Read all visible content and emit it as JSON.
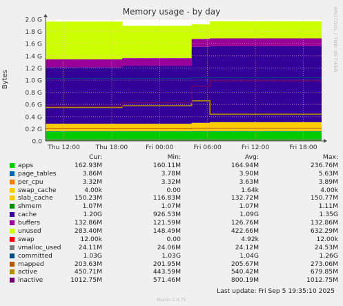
{
  "chart_data": {
    "type": "area",
    "title": "Memory usage - by day",
    "ylabel": "Bytes",
    "ylim": [
      0,
      2.0
    ],
    "y_unit": "G",
    "yticks": [
      "0.0",
      "0.2 G",
      "0.4 G",
      "0.6 G",
      "0.8 G",
      "1.0 G",
      "1.2 G",
      "1.4 G",
      "1.6 G",
      "1.8 G",
      "2.0 G"
    ],
    "xticks": [
      "Thu 12:00",
      "Thu 18:00",
      "Fri 00:00",
      "Fri 06:00",
      "Fri 12:00",
      "Fri 18:00"
    ],
    "x_hours": [
      12,
      18,
      24,
      30,
      36,
      42
    ],
    "x_range_hours": [
      9.7,
      44.3
    ],
    "grid": true,
    "phases_hours": [
      9.7,
      19.3,
      28.0,
      30.3,
      44.3
    ],
    "stack_phases_G": {
      "apps": [
        0.155,
        0.155,
        0.155,
        0.155
      ],
      "page_tables": [
        0.004,
        0.004,
        0.004,
        0.004
      ],
      "per_cpu": [
        0.003,
        0.003,
        0.003,
        0.003
      ],
      "swap_cache": [
        0.0,
        0.0,
        0.0,
        0.0
      ],
      "slab_cache": [
        0.12,
        0.12,
        0.135,
        0.145
      ],
      "shmem": [
        0.001,
        0.001,
        0.001,
        0.001
      ],
      "cache": [
        0.93,
        0.95,
        1.25,
        1.25
      ],
      "buffers": [
        0.13,
        0.13,
        0.13,
        0.13
      ],
      "unused": [
        0.62,
        0.53,
        0.24,
        0.28
      ]
    },
    "line_phases_G": {
      "swap": [
        0.001,
        0.001,
        0.001,
        0.001
      ],
      "vmalloc_used": [
        0.024,
        0.024,
        0.024,
        0.024
      ],
      "committed": [
        1.03,
        1.03,
        1.04,
        1.04
      ],
      "mapped": [
        0.2,
        0.2,
        0.21,
        0.21
      ],
      "active": [
        0.55,
        0.58,
        0.66,
        0.44
      ],
      "inactive": [
        0.57,
        0.63,
        0.9,
        0.99
      ]
    }
  },
  "legend": {
    "headers": {
      "cur": "Cur:",
      "min": "Min:",
      "avg": "Avg:",
      "max": "Max:"
    },
    "rows": [
      {
        "key": "apps",
        "name": "apps",
        "color": "#00cc00",
        "cur": "162.93M",
        "min": "160.11M",
        "avg": "164.94M",
        "max": "236.76M"
      },
      {
        "key": "page_tables",
        "name": "page_tables",
        "color": "#0066b3",
        "cur": "3.86M",
        "min": "3.78M",
        "avg": "3.90M",
        "max": "5.63M"
      },
      {
        "key": "per_cpu",
        "name": "per_cpu",
        "color": "#ff8000",
        "cur": "3.32M",
        "min": "3.32M",
        "avg": "3.63M",
        "max": "3.89M"
      },
      {
        "key": "swap_cache",
        "name": "swap_cache",
        "color": "#ffcc00",
        "cur": "4.00k",
        "min": "0.00",
        "avg": "1.64k",
        "max": "4.00k"
      },
      {
        "key": "slab_cache",
        "name": "slab_cache",
        "color": "#ffcc00",
        "cur": "150.23M",
        "min": "116.83M",
        "avg": "132.72M",
        "max": "150.77M"
      },
      {
        "key": "shmem",
        "name": "shmem",
        "color": "#008f00",
        "cur": "1.07M",
        "min": "1.07M",
        "avg": "1.07M",
        "max": "1.11M"
      },
      {
        "key": "cache",
        "name": "cache",
        "color": "#330099",
        "cur": "1.20G",
        "min": "926.53M",
        "avg": "1.09G",
        "max": "1.35G"
      },
      {
        "key": "buffers",
        "name": "buffers",
        "color": "#990099",
        "cur": "132.86M",
        "min": "121.59M",
        "avg": "126.76M",
        "max": "132.86M"
      },
      {
        "key": "unused",
        "name": "unused",
        "color": "#ccff00",
        "cur": "283.40M",
        "min": "148.49M",
        "avg": "422.66M",
        "max": "632.29M"
      },
      {
        "key": "swap",
        "name": "swap",
        "color": "#ff0000",
        "cur": "12.00k",
        "min": "0.00",
        "avg": "4.92k",
        "max": "12.00k"
      },
      {
        "key": "vmalloc_used",
        "name": "vmalloc_used",
        "color": "#808080",
        "cur": "24.11M",
        "min": "24.06M",
        "avg": "24.12M",
        "max": "24.53M"
      },
      {
        "key": "committed",
        "name": "committed",
        "color": "#00487d",
        "cur": "1.03G",
        "min": "1.03G",
        "avg": "1.04G",
        "max": "1.26G"
      },
      {
        "key": "mapped",
        "name": "mapped",
        "color": "#b35a00",
        "cur": "203.63M",
        "min": "201.95M",
        "avg": "205.67M",
        "max": "273.06M"
      },
      {
        "key": "active",
        "name": "active",
        "color": "#b38f00",
        "cur": "450.71M",
        "min": "443.59M",
        "avg": "540.42M",
        "max": "679.85M"
      },
      {
        "key": "inactive",
        "name": "inactive",
        "color": "#6b006b",
        "cur": "1012.75M",
        "min": "571.46M",
        "avg": "800.19M",
        "max": "1012.75M"
      }
    ]
  },
  "last_update": "Last update:  Fri Sep  5 19:35:10 2025",
  "rrd_credit": "RRDTOOL / TOBI OETIKER",
  "munin_version": "Munin 2.0.75",
  "colors": {
    "background": "#f0f0f0",
    "plot_bg": "#ffffff",
    "grid": "#ffaaaa",
    "axis": "#505050"
  }
}
